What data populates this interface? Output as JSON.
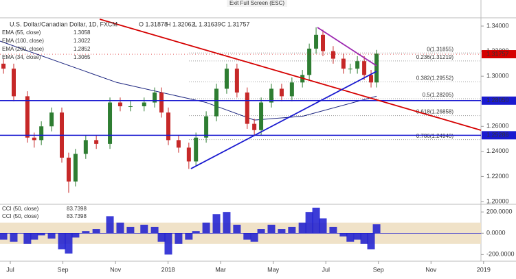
{
  "top_bar": {
    "text": "Exit Full Screen (ESC)"
  },
  "chart_data": [
    {
      "type": "candlestick",
      "title": "U.S. Dollar/Canadian Dollar, 1D, FXCM",
      "ohlc_legend": [
        "O 1.31878",
        "H 1.32062",
        "L 1.31639",
        "C 1.31757"
      ],
      "indicators": [
        {
          "name": "EMA (55, close)",
          "value": 1.3058
        },
        {
          "name": "EMA (100, close)",
          "value": 1.3022
        },
        {
          "name": "EMA (200, close)",
          "value": 1.2852
        },
        {
          "name": "EMA (34, close)",
          "value": 1.3065
        }
      ],
      "x": [
        -0.26,
        0.13,
        0.65,
        0.91,
        1.18,
        1.57,
        1.96,
        2.22,
        2.48,
        2.87,
        3.27,
        3.79,
        4.18,
        4.57,
        5.09,
        5.49,
        5.75,
        6.01,
        6.4,
        6.79,
        7.06,
        7.45,
        7.84,
        8.23,
        8.62,
        9.01,
        9.28,
        9.54,
        9.93,
        10.32,
        10.71,
        11.11,
        11.37,
        11.63,
        11.89,
        12.28,
        12.67,
        12.93,
        13.2,
        13.46,
        13.72,
        13.93
      ],
      "open": [
        1.31,
        1.306,
        1.284,
        1.251,
        1.249,
        1.26,
        1.271,
        1.235,
        1.216,
        1.238,
        1.249,
        1.246,
        1.279,
        1.276,
        1.276,
        1.279,
        1.287,
        1.271,
        1.249,
        1.243,
        1.232,
        1.251,
        1.268,
        1.29,
        1.306,
        1.287,
        1.262,
        1.257,
        1.279,
        1.29,
        1.284,
        1.295,
        1.301,
        1.322,
        1.333,
        1.32,
        1.314,
        1.306,
        1.306,
        1.312,
        1.301,
        1.295
      ],
      "high": [
        1.314,
        1.31,
        1.288,
        1.255,
        1.264,
        1.275,
        1.275,
        1.239,
        1.242,
        1.253,
        1.253,
        1.283,
        1.283,
        1.28,
        1.283,
        1.291,
        1.291,
        1.275,
        1.253,
        1.247,
        1.255,
        1.272,
        1.294,
        1.31,
        1.31,
        1.291,
        1.266,
        1.283,
        1.294,
        1.294,
        1.299,
        1.305,
        1.326,
        1.339,
        1.337,
        1.324,
        1.318,
        1.31,
        1.316,
        1.316,
        1.305,
        1.321
      ],
      "low": [
        1.302,
        1.28,
        1.247,
        1.243,
        1.245,
        1.256,
        1.231,
        1.207,
        1.212,
        1.234,
        1.242,
        1.242,
        1.272,
        1.272,
        1.272,
        1.275,
        1.267,
        1.245,
        1.239,
        1.226,
        1.228,
        1.247,
        1.264,
        1.286,
        1.283,
        1.258,
        1.253,
        1.253,
        1.275,
        1.28,
        1.28,
        1.291,
        1.297,
        1.318,
        1.316,
        1.31,
        1.302,
        1.302,
        1.302,
        1.297,
        1.291,
        1.291
      ],
      "close": [
        1.306,
        1.284,
        1.251,
        1.249,
        1.26,
        1.271,
        1.235,
        1.216,
        1.238,
        1.249,
        1.246,
        1.279,
        1.276,
        1.276,
        1.279,
        1.287,
        1.271,
        1.249,
        1.243,
        1.232,
        1.251,
        1.268,
        1.29,
        1.306,
        1.287,
        1.262,
        1.257,
        1.279,
        1.29,
        1.284,
        1.295,
        1.301,
        1.322,
        1.333,
        1.32,
        1.314,
        1.306,
        1.306,
        1.312,
        1.301,
        1.295,
        1.318
      ],
      "up_color": "#2e7d32",
      "down_color": "#c62828",
      "ema": {
        "name": "EMA (200, close)",
        "color": "#1a237e",
        "x": [
          -0.39,
          4.05,
          7.45,
          9.28,
          11.11,
          13.93
        ],
        "values": [
          1.328,
          1.295,
          1.279,
          1.265,
          1.268,
          1.284
        ]
      },
      "trend_lines": [
        {
          "color": "#d50000",
          "x": [
            3.4,
            17.9
          ],
          "values": [
            1.3455,
            1.2569
          ]
        },
        {
          "color": "#1a1ad0",
          "x": [
            6.87,
            13.93
          ],
          "values": [
            1.2262,
            1.3039
          ]
        },
        {
          "color": "#9c27b0",
          "x": [
            11.68,
            13.93
          ],
          "values": [
            1.3389,
            1.3083
          ]
        }
      ],
      "levels": [
        {
          "value": 1.2805,
          "label": "1.28050",
          "color": "#1a1ad0"
        },
        {
          "value": 1.25286,
          "label": "1.25286",
          "color": "#1a1ad0"
        }
      ],
      "last_price": {
        "value": 1.31757,
        "label": "1.31757",
        "color": "#d50000"
      },
      "fib": [
        {
          "value": 1.31855,
          "label": "0(1.31855)",
          "color": "#4caf50"
        },
        {
          "value": 1.31219,
          "label": "0.236(1.31219)",
          "color": "#555"
        },
        {
          "value": 1.29552,
          "label": "0.382(1.29552)",
          "color": "#555"
        },
        {
          "value": 1.28205,
          "label": "0.5(1.28205)",
          "color": "#555"
        },
        {
          "value": 1.26858,
          "label": "0.618(1.26858)",
          "color": "#555"
        },
        {
          "value": 1.2494,
          "label": "0.786(1.24940)",
          "color": "#555"
        }
      ],
      "xlim": [
        -0.392,
        17.9
      ],
      "ylim": [
        1.1978,
        1.3608
      ],
      "yticks": [
        {
          "value": 1.34,
          "label": "1.34000"
        },
        {
          "value": 1.32,
          "label": "1.32000"
        },
        {
          "value": 1.3,
          "label": "1.30000"
        },
        {
          "value": 1.28,
          "label": "1.28000"
        },
        {
          "value": 1.26,
          "label": "1.26000"
        },
        {
          "value": 1.24,
          "label": "1.24000"
        },
        {
          "value": 1.22,
          "label": "1.22000"
        },
        {
          "value": 1.2,
          "label": "1.20000"
        }
      ],
      "xticks": [
        {
          "value": 0,
          "label": "Jul"
        },
        {
          "value": 2,
          "label": "Sep"
        },
        {
          "value": 4,
          "label": "Nov"
        },
        {
          "value": 6,
          "label": "2018"
        },
        {
          "value": 8,
          "label": "Mar"
        },
        {
          "value": 10,
          "label": "May"
        },
        {
          "value": 12,
          "label": "Jul"
        },
        {
          "value": 14,
          "label": "Sep"
        },
        {
          "value": 16,
          "label": "Nov"
        },
        {
          "value": 18,
          "label": "2019"
        }
      ]
    },
    {
      "type": "histogram",
      "legend": [
        {
          "name": "CCI (50, close)",
          "value": 83.7398
        },
        {
          "name": "CCI (50, close)",
          "value": 83.7398
        }
      ],
      "color": "#1a1ad0",
      "x": [
        -0.26,
        0.13,
        0.65,
        0.91,
        1.18,
        1.57,
        1.96,
        2.22,
        2.48,
        2.87,
        3.27,
        3.79,
        4.18,
        4.57,
        5.09,
        5.49,
        5.75,
        6.01,
        6.4,
        6.79,
        7.06,
        7.45,
        7.84,
        8.23,
        8.62,
        9.01,
        9.28,
        9.54,
        9.93,
        10.32,
        10.71,
        11.11,
        11.37,
        11.63,
        11.89,
        12.28,
        12.67,
        12.93,
        13.2,
        13.46,
        13.72,
        13.93
      ],
      "values": [
        -60,
        -80,
        -100,
        -60,
        -20,
        -50,
        -150,
        -190,
        -40,
        20,
        40,
        160,
        100,
        60,
        80,
        60,
        -80,
        -200,
        -100,
        -60,
        20,
        100,
        180,
        200,
        80,
        -60,
        -80,
        40,
        80,
        40,
        60,
        100,
        200,
        240,
        140,
        60,
        -30,
        -80,
        -60,
        -100,
        -150,
        84
      ],
      "band": [
        -100,
        100
      ],
      "band_color": "#f0e2c8",
      "ylim": [
        -262,
        259
      ],
      "yticks": [
        {
          "value": 200,
          "label": "200.0000"
        },
        {
          "value": 0,
          "label": "0.0000"
        },
        {
          "value": -200,
          "label": "-200.0000"
        }
      ]
    }
  ]
}
